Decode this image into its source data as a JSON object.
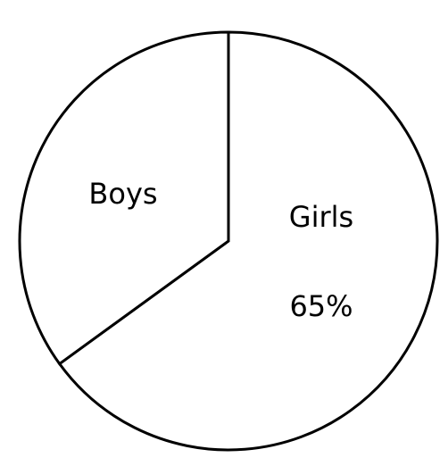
{
  "chart_data": {
    "type": "pie",
    "title": "",
    "slices": [
      {
        "label": "Girls",
        "value": 65,
        "value_label": "65%"
      },
      {
        "label": "Boys",
        "value": 35,
        "value_label": ""
      }
    ],
    "start_angle_deg": 0,
    "direction": "clockwise",
    "legend": "none",
    "colors": {
      "fill": "#ffffff",
      "stroke": "#000000"
    }
  }
}
